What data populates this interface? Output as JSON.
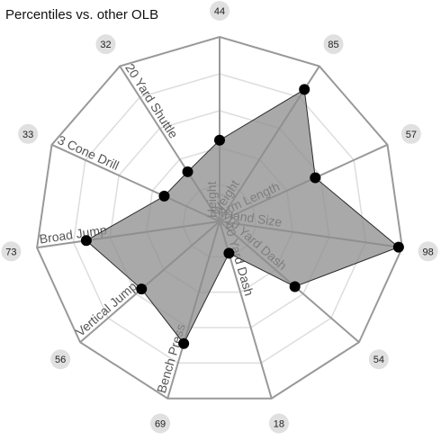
{
  "chart_data": {
    "type": "radar",
    "title": "Percentiles vs. other OLB",
    "axes": [
      "Height",
      "Weight",
      "Arm Length",
      "Hand Size",
      "10 Yard Dash",
      "40 Yard Dash",
      "Bench Press",
      "Vertical Jump",
      "Broad Jump",
      "3 Cone Drill",
      "20 Yard Shuttle"
    ],
    "values": [
      44,
      85,
      57,
      98,
      54,
      18,
      69,
      56,
      73,
      33,
      32
    ],
    "range": [
      0,
      100
    ],
    "grid_levels": [
      20,
      40,
      60,
      80,
      100
    ],
    "colors": {
      "fill": "#8c8c8c",
      "point": "#000000",
      "grid": "#dddddd",
      "frame": "#999999",
      "badge": "#e0e0e0"
    }
  }
}
